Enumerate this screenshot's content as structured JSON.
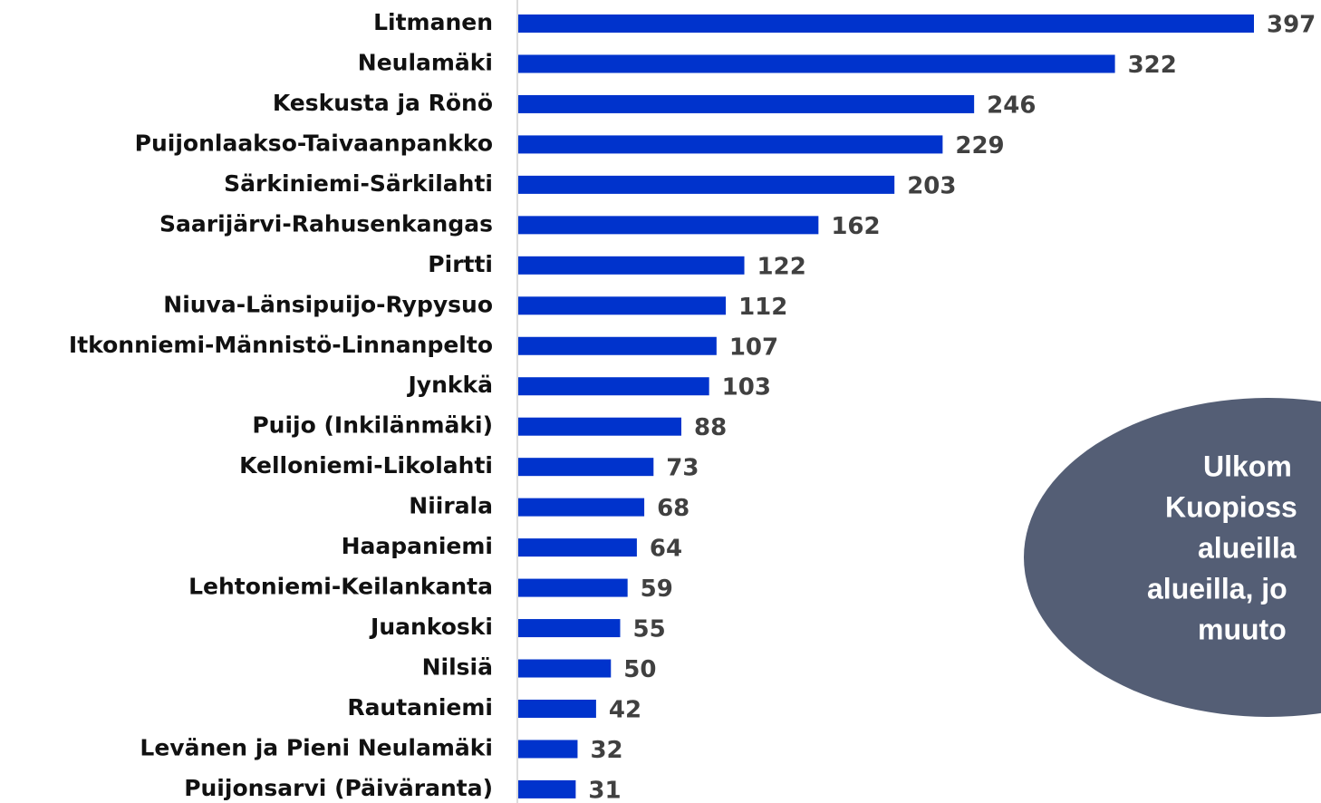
{
  "chart_data": {
    "type": "bar",
    "orientation": "horizontal",
    "categories": [
      "Litmanen",
      "Neulamäki",
      "Keskusta ja Rönö",
      "Puijonlaakso-Taivaanpankko",
      "Särkiniemi-Särkilahti",
      "Saarijärvi-Rahusenkangas",
      "Pirtti",
      "Niuva-Länsipuijo-Rypysuo",
      "Itkonniemi-Männistö-Linnanpelto",
      "Jynkkä",
      "Puijo (Inkilänmäki)",
      "Kelloniemi-Likolahti",
      "Niirala",
      "Haapaniemi",
      "Lehtoniemi-Keilankanta",
      "Juankoski",
      "Nilsiä",
      "Rautaniemi",
      "Levänen ja Pieni Neulamäki",
      "Puijonsarvi (Päiväranta)"
    ],
    "values": [
      397,
      322,
      246,
      229,
      203,
      162,
      122,
      112,
      107,
      103,
      88,
      73,
      68,
      64,
      59,
      55,
      50,
      42,
      32,
      31
    ],
    "color": "#0033cc",
    "annotation": [
      "Ulkom",
      "Kuopioss",
      "alueilla",
      "alueilla, jo",
      "muuto"
    ]
  }
}
